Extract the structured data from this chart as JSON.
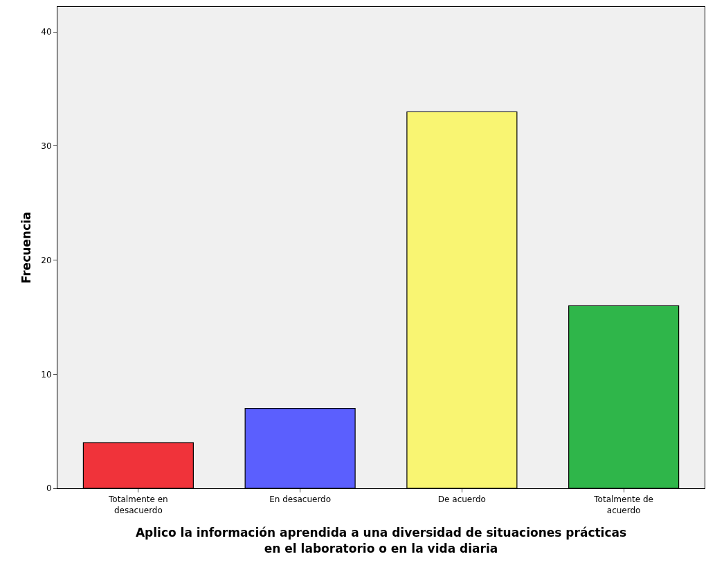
{
  "chart_data": {
    "type": "bar",
    "xlabel": "Aplico la información aprendida a una diversidad de situaciones prácticas en el laboratorio o en la vida diaria",
    "ylabel": "Frecuencia",
    "categories": [
      "Totalmente en desacuerdo",
      "En desacuerdo",
      "De acuerdo",
      "Totalmente de acuerdo"
    ],
    "values": [
      4,
      7,
      33,
      16
    ],
    "colors": [
      "#f0333a",
      "#5b5ffe",
      "#f9f572",
      "#2fb64a"
    ],
    "ylim": [
      0,
      42.2
    ],
    "yticks": [
      0,
      10,
      20,
      30,
      40
    ],
    "grid": false
  }
}
